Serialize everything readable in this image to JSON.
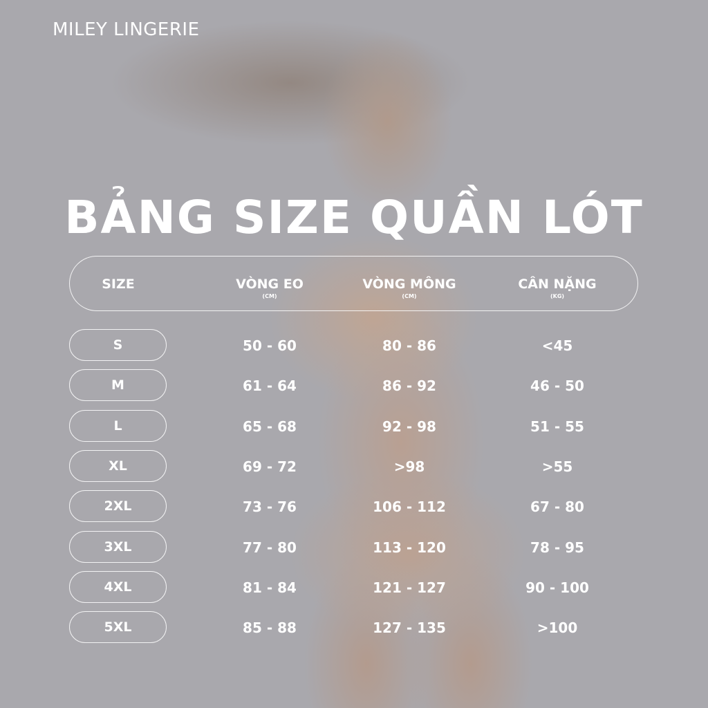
{
  "brand": "MILEY LINGERIE",
  "title": "BẢNG SIZE QUẦN LÓT",
  "table": {
    "headers": [
      {
        "label": "SIZE",
        "unit": ""
      },
      {
        "label": "VÒNG EO",
        "unit": "(CM)"
      },
      {
        "label": "VÒNG MÔNG",
        "unit": "(CM)"
      },
      {
        "label": "CÂN NẶNG",
        "unit": "(KG)"
      }
    ],
    "rows": [
      [
        "S",
        "50 - 60",
        "80 - 86",
        "<45"
      ],
      [
        "M",
        "61 - 64",
        "86 - 92",
        "46 - 50"
      ],
      [
        "L",
        "65 - 68",
        "92 - 98",
        "51 - 55"
      ],
      [
        "XL",
        "69 - 72",
        ">98",
        ">55"
      ],
      [
        "2XL",
        "73 - 76",
        "106 - 112",
        "67 - 80"
      ],
      [
        "3XL",
        "77 - 80",
        "113 - 120",
        "78 - 95"
      ],
      [
        "4XL",
        "81 - 84",
        "121 - 127",
        "90 - 100"
      ],
      [
        "5XL",
        "85 - 88",
        "127 - 135",
        ">100"
      ]
    ]
  }
}
